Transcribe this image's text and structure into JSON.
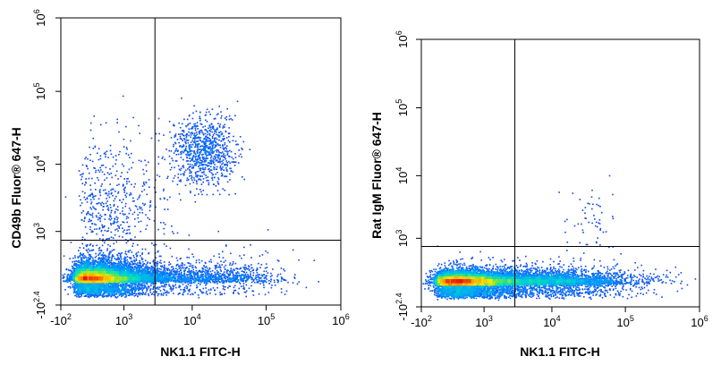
{
  "chart_data": [
    {
      "type": "scatter",
      "xlabel": "NK1.1 FITC-H",
      "ylabel": "CD49b Fluor® 647-H",
      "x_scale": "biexponential",
      "y_scale": "biexponential",
      "xlim": [
        -100,
        1000000
      ],
      "ylim": [
        -251,
        1000000
      ],
      "x_ticks": [
        {
          "base": "-10",
          "exp": "2"
        },
        {
          "base": "10",
          "exp": "3"
        },
        {
          "base": "10",
          "exp": "4"
        },
        {
          "base": "10",
          "exp": "5"
        },
        {
          "base": "10",
          "exp": "6"
        }
      ],
      "y_ticks": [
        {
          "base": "-10",
          "exp": "2.4"
        },
        {
          "base": "10",
          "exp": "3"
        },
        {
          "base": "10",
          "exp": "4"
        },
        {
          "base": "10",
          "exp": "5"
        },
        {
          "base": "10",
          "exp": "6"
        }
      ],
      "gates": {
        "x": 3000,
        "y": 700
      },
      "populations": [
        {
          "x": 320,
          "y": 60,
          "x_spread_decades": 0.45,
          "y_spread_decades": 0.32,
          "n": 9000
        },
        {
          "x": 3500,
          "y": 60,
          "x_spread_decades": 0.65,
          "y_spread_decades": 0.35,
          "n": 1600
        },
        {
          "x": 14000,
          "y": 15000,
          "x_spread_decades": 0.22,
          "y_spread_decades": 0.25,
          "n": 900
        },
        {
          "x": 600,
          "y": 3000,
          "x_spread_decades": 0.45,
          "y_spread_decades": 0.45,
          "n": 500
        },
        {
          "x": 40000,
          "y": 60,
          "x_spread_decades": 0.4,
          "y_spread_decades": 0.4,
          "n": 400
        }
      ]
    },
    {
      "type": "scatter",
      "xlabel": "NK1.1 FITC-H",
      "ylabel": "Rat IgM Fluor® 647-H",
      "x_scale": "biexponential",
      "y_scale": "biexponential",
      "xlim": [
        -100,
        1000000
      ],
      "ylim": [
        -251,
        1000000
      ],
      "x_ticks": [
        {
          "base": "-10",
          "exp": "2"
        },
        {
          "base": "10",
          "exp": "3"
        },
        {
          "base": "10",
          "exp": "4"
        },
        {
          "base": "10",
          "exp": "5"
        },
        {
          "base": "10",
          "exp": "6"
        }
      ],
      "y_ticks": [
        {
          "base": "-10",
          "exp": "2.4"
        },
        {
          "base": "10",
          "exp": "3"
        },
        {
          "base": "10",
          "exp": "4"
        },
        {
          "base": "10",
          "exp": "5"
        },
        {
          "base": "10",
          "exp": "6"
        }
      ],
      "gates": {
        "x": 3000,
        "y": 700
      },
      "populations": [
        {
          "x": 420,
          "y": 60,
          "x_spread_decades": 0.45,
          "y_spread_decades": 0.25,
          "n": 8000
        },
        {
          "x": 7000,
          "y": 60,
          "x_spread_decades": 0.65,
          "y_spread_decades": 0.28,
          "n": 4000
        },
        {
          "x": 35000,
          "y": 1800,
          "x_spread_decades": 0.2,
          "y_spread_decades": 0.3,
          "n": 60
        }
      ]
    }
  ]
}
